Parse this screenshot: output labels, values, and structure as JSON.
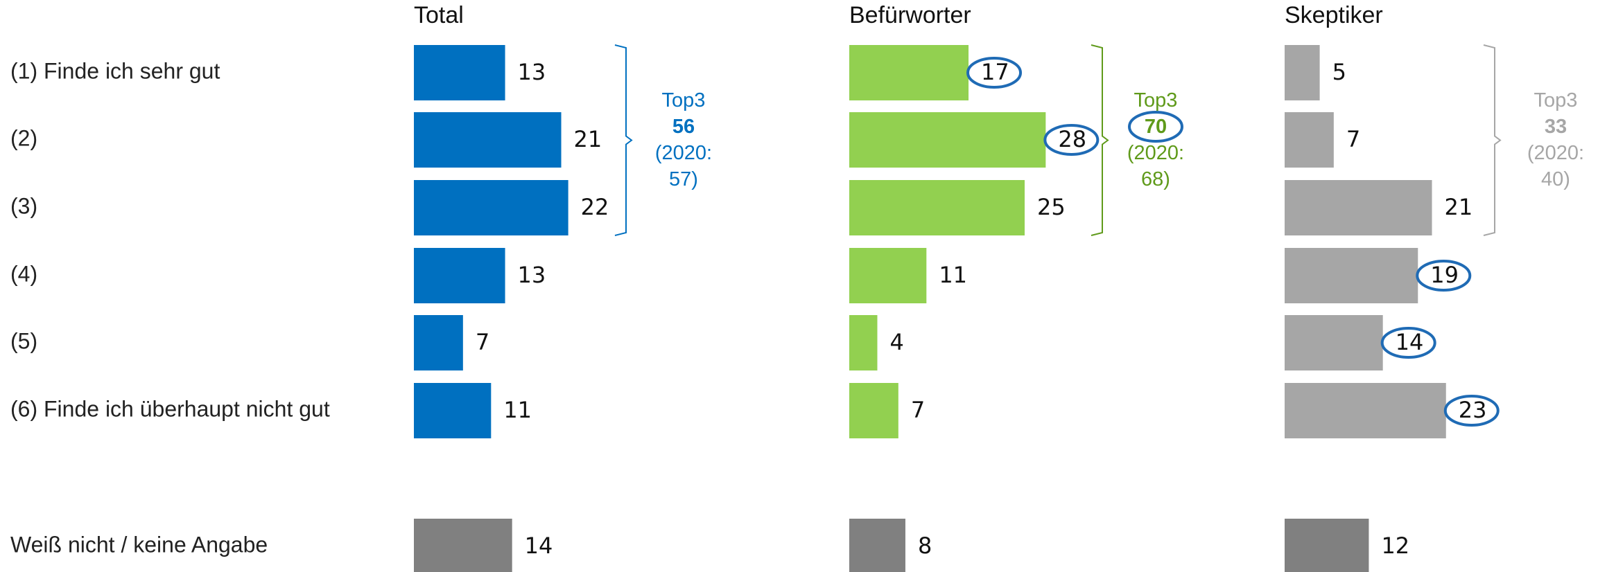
{
  "chart_data": {
    "type": "bar",
    "categories": [
      "(1) Finde ich sehr gut",
      "(2)",
      "(3)",
      "(4)",
      "(5)",
      "(6) Finde ich überhaupt nicht gut",
      "Weiß nicht / keine Angabe"
    ],
    "circle_color": "#1f6bb5",
    "series": [
      {
        "name": "Total",
        "values": [
          13,
          21,
          22,
          13,
          7,
          11,
          14
        ],
        "colors": [
          "#0070c0",
          "#0070c0",
          "#0070c0",
          "#0070c0",
          "#0070c0",
          "#0070c0",
          "#808080"
        ],
        "circled": [],
        "top3": {
          "label": "Top3",
          "value": 56,
          "note": "(2020: 57)",
          "color": "#0070c0",
          "circled": false
        }
      },
      {
        "name": "Befürworter",
        "values": [
          17,
          28,
          25,
          11,
          4,
          7,
          8
        ],
        "colors": [
          "#92d050",
          "#92d050",
          "#92d050",
          "#92d050",
          "#92d050",
          "#92d050",
          "#808080"
        ],
        "circled": [
          0,
          1
        ],
        "top3": {
          "label": "Top3",
          "value": 70,
          "note": "(2020: 68)",
          "color": "#5f9a1a",
          "circled": true
        }
      },
      {
        "name": "Skeptiker",
        "values": [
          5,
          7,
          21,
          19,
          14,
          23,
          12
        ],
        "colors": [
          "#a6a6a6",
          "#a6a6a6",
          "#a6a6a6",
          "#a6a6a6",
          "#a6a6a6",
          "#a6a6a6",
          "#808080"
        ],
        "circled": [
          3,
          4,
          5
        ],
        "top3": {
          "label": "Top3",
          "value": 33,
          "note": "(2020: 40)",
          "color": "#a6a6a6",
          "circled": false
        }
      }
    ]
  }
}
